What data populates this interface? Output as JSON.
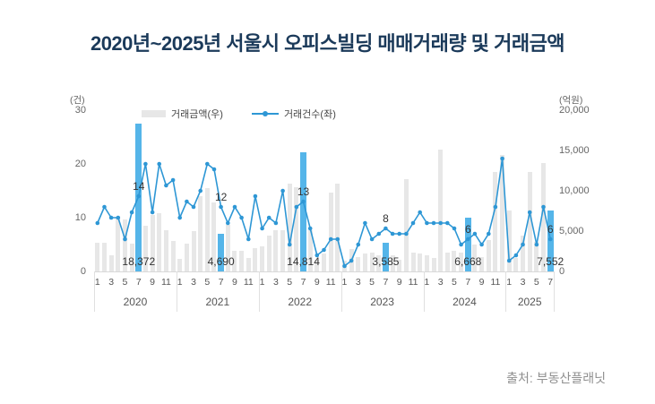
{
  "chart_data": {
    "type": "bar+line combo",
    "title": "2020년~2025년 서울시 오피스빌딩 매매거래량 및 거래금액",
    "source": "출처: 부동산플래닛",
    "legend": {
      "bar": "거래금액(우)",
      "line": "거래건수(좌)"
    },
    "left_axis": {
      "unit": "(건)",
      "tick_values": [
        0,
        10,
        20,
        30
      ],
      "tick_labels": [
        "0",
        "10",
        "20",
        "30"
      ],
      "max": 30
    },
    "right_axis": {
      "unit": "(억원)",
      "tick_values": [
        0,
        5000,
        10000,
        15000,
        20000
      ],
      "tick_labels": [
        "0",
        "5,000",
        "10,000",
        "15,000",
        "20,000"
      ],
      "max": 20000
    },
    "colors": {
      "bar": "#e7e7e7",
      "highlight_bar": "#55b5e9",
      "line": "#2e97d5",
      "title": "#1b3a5a",
      "axis_text": "#666666",
      "annotation": "#333333",
      "source": "#909090"
    },
    "years": [
      {
        "label": "2020",
        "months": 12,
        "month_ticks": [
          "1",
          "3",
          "5",
          "7",
          "9",
          "11"
        ]
      },
      {
        "label": "2021",
        "months": 12,
        "month_ticks": [
          "1",
          "3",
          "5",
          "7",
          "9",
          "11"
        ]
      },
      {
        "label": "2022",
        "months": 12,
        "month_ticks": [
          "1",
          "3",
          "5",
          "7",
          "9",
          "11"
        ]
      },
      {
        "label": "2023",
        "months": 12,
        "month_ticks": [
          "1",
          "3",
          "5",
          "7",
          "9",
          "11"
        ]
      },
      {
        "label": "2024",
        "months": 12,
        "month_ticks": [
          "1",
          "3",
          "5",
          "7",
          "9",
          "11"
        ]
      },
      {
        "label": "2025",
        "months": 7,
        "month_ticks": [
          "1",
          "3",
          "5",
          "7"
        ]
      }
    ],
    "series": {
      "amount": {
        "name": "거래금액(우)",
        "axis": "right",
        "unit": "억원",
        "values": [
          3600,
          3600,
          2000,
          6800,
          6500,
          3500,
          18372,
          5700,
          7000,
          7200,
          5100,
          3800,
          1550,
          3480,
          5000,
          9300,
          10300,
          8550,
          4690,
          5800,
          2550,
          2550,
          1650,
          2900,
          3100,
          4400,
          5140,
          5140,
          10900,
          10500,
          14814,
          5100,
          1440,
          2200,
          9800,
          10900,
          1350,
          2750,
          1750,
          2200,
          2350,
          2000,
          3585,
          2000,
          1450,
          11400,
          2370,
          2200,
          2000,
          1650,
          15100,
          2350,
          2550,
          2350,
          6668,
          3300,
          1800,
          3900,
          12300,
          14500,
          7550,
          1650,
          4440,
          12300,
          3670,
          13450,
          7552
        ]
      },
      "count": {
        "name": "거래건수(좌)",
        "axis": "left",
        "unit": "건",
        "values": [
          9,
          12,
          10,
          10,
          6,
          11,
          14,
          20,
          11,
          20,
          16,
          17,
          10,
          13,
          12,
          15,
          20,
          19,
          12,
          9,
          12,
          10,
          6,
          14,
          8,
          10,
          9,
          15,
          5,
          12,
          13,
          8,
          3,
          4,
          6,
          6,
          1,
          2,
          5,
          9,
          6,
          7,
          8,
          7,
          7,
          7,
          9,
          11,
          9,
          9,
          9,
          9,
          8,
          5,
          6,
          7,
          5,
          7,
          12,
          21,
          2,
          3,
          5,
          11,
          5,
          12,
          6
        ]
      }
    },
    "highlights": [
      {
        "month_index": 6,
        "year": "2020",
        "month": 7,
        "amount_label": "18,372",
        "count_label": "14"
      },
      {
        "month_index": 18,
        "year": "2021",
        "month": 7,
        "amount_label": "4,690",
        "count_label": "12"
      },
      {
        "month_index": 30,
        "year": "2022",
        "month": 7,
        "amount_label": "14,814",
        "count_label": "13"
      },
      {
        "month_index": 42,
        "year": "2023",
        "month": 7,
        "amount_label": "3,585",
        "count_label": "8"
      },
      {
        "month_index": 54,
        "year": "2024",
        "month": 7,
        "amount_label": "6,668",
        "count_label": "6"
      },
      {
        "month_index": 66,
        "year": "2025",
        "month": 7,
        "amount_label": "7,552",
        "count_label": "6"
      }
    ]
  }
}
